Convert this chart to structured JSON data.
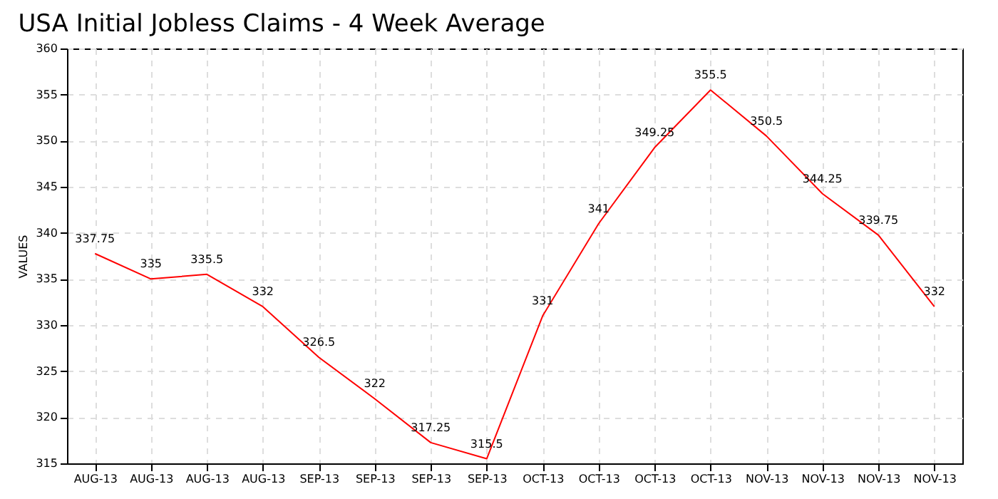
{
  "chart_data": {
    "type": "line",
    "title": "USA Initial Jobless Claims - 4 Week Average",
    "ylabel": "VALUES",
    "categories": [
      "AUG-13",
      "AUG-13",
      "AUG-13",
      "AUG-13",
      "SEP-13",
      "SEP-13",
      "SEP-13",
      "SEP-13",
      "OCT-13",
      "OCT-13",
      "OCT-13",
      "OCT-13",
      "NOV-13",
      "NOV-13",
      "NOV-13",
      "NOV-13"
    ],
    "series": [
      {
        "color": "#ff0000",
        "values": [
          337.75,
          335,
          335.5,
          332,
          326.5,
          322,
          317.25,
          315.5,
          331,
          341,
          349.25,
          355.5,
          350.5,
          344.25,
          339.75,
          332
        ]
      }
    ],
    "ylim": [
      315,
      360
    ],
    "yticks": [
      315,
      320,
      325,
      330,
      335,
      340,
      345,
      350,
      355,
      360
    ],
    "grid": true,
    "data_labels": true,
    "marker": "none",
    "line_style": "solid"
  }
}
